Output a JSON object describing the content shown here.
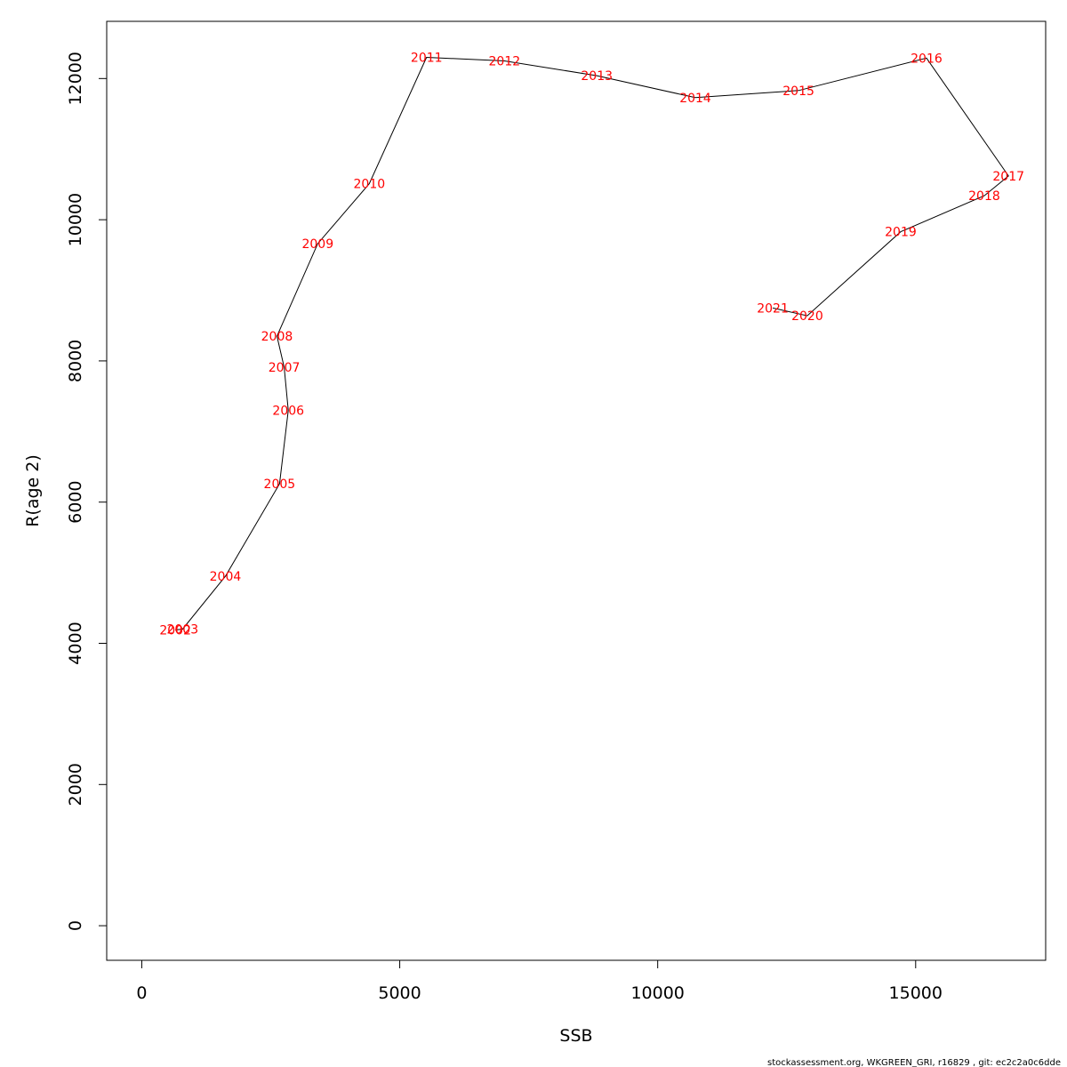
{
  "chart_data": {
    "type": "line",
    "title": "",
    "xlabel": "SSB",
    "ylabel": "R(age 2)",
    "xlim": [
      -680,
      17520
    ],
    "ylim": [
      -490,
      12810
    ],
    "xticks": [
      0,
      5000,
      10000,
      15000
    ],
    "yticks": [
      0,
      2000,
      4000,
      6000,
      8000,
      10000,
      12000
    ],
    "grid": false,
    "label_color": "#ff0000",
    "line_color": "#000000",
    "points": [
      {
        "label": "2002",
        "x": 650,
        "y": 4190
      },
      {
        "label": "2003",
        "x": 790,
        "y": 4200
      },
      {
        "label": "2004",
        "x": 1620,
        "y": 4950
      },
      {
        "label": "2005",
        "x": 2670,
        "y": 6260
      },
      {
        "label": "2006",
        "x": 2840,
        "y": 7300
      },
      {
        "label": "2007",
        "x": 2760,
        "y": 7910
      },
      {
        "label": "2008",
        "x": 2620,
        "y": 8350
      },
      {
        "label": "2009",
        "x": 3410,
        "y": 9660
      },
      {
        "label": "2010",
        "x": 4410,
        "y": 10510
      },
      {
        "label": "2011",
        "x": 5520,
        "y": 12300
      },
      {
        "label": "2012",
        "x": 7030,
        "y": 12250
      },
      {
        "label": "2013",
        "x": 8820,
        "y": 12040
      },
      {
        "label": "2014",
        "x": 10730,
        "y": 11730
      },
      {
        "label": "2015",
        "x": 12730,
        "y": 11830
      },
      {
        "label": "2016",
        "x": 15210,
        "y": 12290
      },
      {
        "label": "2017",
        "x": 16800,
        "y": 10620
      },
      {
        "label": "2018",
        "x": 16330,
        "y": 10340
      },
      {
        "label": "2019",
        "x": 14710,
        "y": 9830
      },
      {
        "label": "2020",
        "x": 12900,
        "y": 8640
      },
      {
        "label": "2021",
        "x": 12230,
        "y": 8750
      }
    ]
  },
  "footer": "stockassessment.org, WKGREEN_GRI, r16829 , git: ec2c2a0c6dde"
}
